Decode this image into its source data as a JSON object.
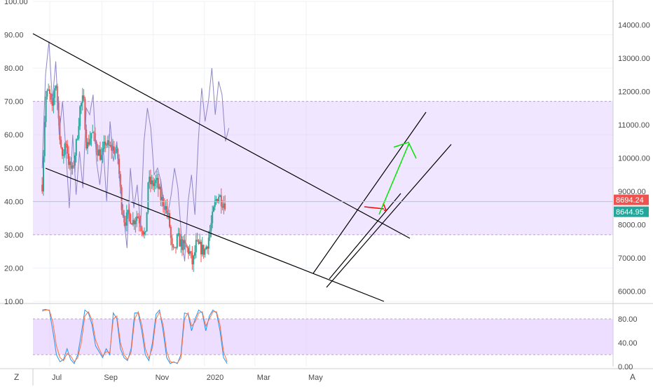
{
  "colors": {
    "up": "#26a69a",
    "down": "#ef5350",
    "band_fill": "#e1c8ff",
    "band_border": "#c39bd3",
    "rsi_line": "#8c85c8",
    "stoch_k": "#2196f3",
    "stoch_d": "#ff7043",
    "trendline": "#000000",
    "arrow_up": "#00e600",
    "arrow_down": "#ff0000",
    "last_price_red": "#ef5350",
    "last_price_green": "#26a69a",
    "grid": "#eef1f5",
    "axis_text": "#4a4a4a"
  },
  "ui": {
    "scale_mode_label": "Z",
    "auto_label": "A"
  },
  "chart_data": [
    {
      "type": "candlestick",
      "title": "",
      "left_axis": {
        "ticks": [
          "100.00",
          "90.00",
          "80.00",
          "70.00",
          "60.00",
          "50.00",
          "40.00",
          "30.00",
          "20.00",
          "10.00"
        ],
        "range": [
          10,
          100
        ]
      },
      "right_axis": {
        "ticks": [
          "14000.00",
          "13000.00",
          "12000.00",
          "11000.00",
          "10000.00",
          "9000.00",
          "8000.00",
          "7000.00",
          "6000.00"
        ],
        "range": [
          5700,
          14700
        ]
      },
      "x_axis": {
        "ticks": [
          "Jul",
          "Sep",
          "Nov",
          "2020",
          "Mar",
          "May"
        ]
      },
      "rsi_band": [
        30,
        70
      ],
      "last_price_labels": [
        "8694.24",
        "8644.95"
      ],
      "price_path": [
        [
          "2019-06-22",
          9200
        ],
        [
          "2019-06-26",
          11800
        ],
        [
          "2019-06-30",
          12000
        ],
        [
          "2019-07-04",
          11400
        ],
        [
          "2019-07-08",
          12400
        ],
        [
          "2019-07-12",
          11000
        ],
        [
          "2019-07-16",
          9900
        ],
        [
          "2019-07-20",
          10600
        ],
        [
          "2019-07-24",
          9800
        ],
        [
          "2019-07-28",
          9600
        ],
        [
          "2019-08-02",
          10500
        ],
        [
          "2019-08-06",
          11500
        ],
        [
          "2019-08-10",
          11800
        ],
        [
          "2019-08-14",
          10300
        ],
        [
          "2019-08-20",
          10800
        ],
        [
          "2019-08-26",
          10300
        ],
        [
          "2019-09-01",
          10000
        ],
        [
          "2019-09-05",
          10500
        ],
        [
          "2019-09-10",
          10300
        ],
        [
          "2019-09-15",
          10300
        ],
        [
          "2019-09-20",
          10000
        ],
        [
          "2019-09-24",
          8700
        ],
        [
          "2019-09-28",
          8100
        ],
        [
          "2019-10-03",
          8300
        ],
        [
          "2019-10-08",
          8100
        ],
        [
          "2019-10-13",
          8300
        ],
        [
          "2019-10-18",
          8000
        ],
        [
          "2019-10-23",
          7600
        ],
        [
          "2019-10-26",
          9300
        ],
        [
          "2019-10-31",
          9200
        ],
        [
          "2019-11-05",
          9300
        ],
        [
          "2019-11-10",
          8800
        ],
        [
          "2019-11-15",
          8600
        ],
        [
          "2019-11-20",
          8100
        ],
        [
          "2019-11-23",
          7300
        ],
        [
          "2019-11-26",
          7100
        ],
        [
          "2019-11-30",
          7600
        ],
        [
          "2019-12-05",
          7400
        ],
        [
          "2019-12-10",
          7300
        ],
        [
          "2019-12-14",
          7200
        ],
        [
          "2019-12-18",
          6800
        ],
        [
          "2019-12-22",
          7400
        ],
        [
          "2019-12-27",
          7300
        ],
        [
          "2020-01-01",
          7200
        ],
        [
          "2020-01-05",
          7500
        ],
        [
          "2020-01-09",
          8000
        ],
        [
          "2020-01-14",
          8700
        ],
        [
          "2020-01-18",
          8900
        ],
        [
          "2020-01-22",
          8700
        ],
        [
          "2020-01-26",
          8650
        ]
      ]
    },
    {
      "type": "line",
      "title": "",
      "y_axis": {
        "ticks": [
          "80.00",
          "40.00",
          "0.00"
        ],
        "range": [
          0,
          100
        ]
      },
      "band": [
        20,
        80
      ],
      "series": [
        {
          "values": [
            95,
            96,
            94,
            60,
            20,
            8,
            12,
            30,
            12,
            5,
            20,
            55,
            95,
            90,
            70,
            35,
            25,
            15,
            30,
            20,
            90,
            80,
            30,
            15,
            10,
            30,
            90,
            90,
            60,
            20,
            10,
            40,
            88,
            95,
            60,
            15,
            5,
            8,
            5,
            20,
            90,
            88,
            60,
            80,
            95,
            90,
            60,
            85,
            95,
            90,
            60,
            15,
            5
          ]
        },
        {
          "values": [
            93,
            95,
            95,
            75,
            35,
            15,
            10,
            22,
            18,
            8,
            15,
            40,
            85,
            92,
            78,
            45,
            30,
            18,
            25,
            24,
            80,
            85,
            40,
            20,
            12,
            24,
            80,
            92,
            70,
            30,
            14,
            32,
            80,
            92,
            70,
            25,
            8,
            7,
            6,
            15,
            80,
            90,
            68,
            75,
            90,
            92,
            68,
            80,
            92,
            92,
            70,
            25,
            8
          ]
        }
      ]
    }
  ]
}
